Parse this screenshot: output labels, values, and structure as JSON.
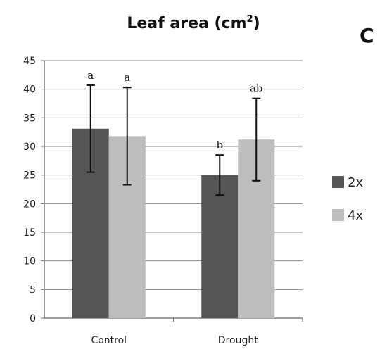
{
  "panel_letter": "C",
  "chart_data": {
    "type": "bar",
    "title": "Leaf area (cm",
    "title_superscript": "2",
    "title_suffix": ")",
    "categories": [
      "Control",
      "Drought"
    ],
    "series": [
      {
        "name": "2x",
        "values": [
          33.1,
          25.0
        ],
        "error": [
          7.6,
          3.5
        ],
        "significance": [
          "a",
          "b"
        ],
        "color": "#555555"
      },
      {
        "name": "4x",
        "values": [
          31.8,
          31.2
        ],
        "error": [
          8.5,
          7.2
        ],
        "significance": [
          "a",
          "ab"
        ],
        "color": "#bdbdbd"
      }
    ],
    "ylim": [
      0,
      45
    ],
    "yticks": [
      "0",
      "5",
      "10",
      "15",
      "20",
      "25",
      "30",
      "35",
      "40",
      "45"
    ],
    "grid": true,
    "legend_position": "right"
  }
}
